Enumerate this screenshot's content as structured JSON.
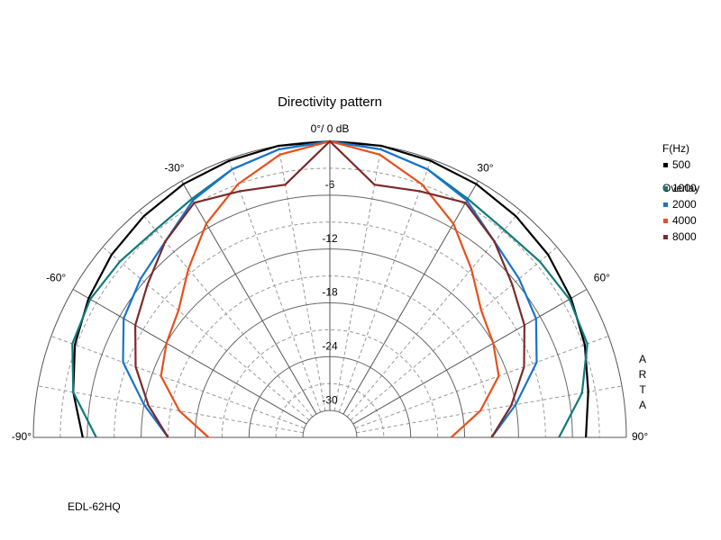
{
  "chart_data": {
    "type": "polar-half",
    "title": "Directivity pattern",
    "theta": [
      -90,
      -80,
      -70,
      -60,
      -50,
      -40,
      -30,
      -20,
      -10,
      0,
      10,
      20,
      30,
      40,
      50,
      60,
      70,
      80,
      90
    ],
    "rlim": [
      -33,
      0
    ],
    "rticks": [
      -30,
      -24,
      -18,
      -12,
      -6
    ],
    "r_minor": [
      -27,
      -21,
      -15,
      -9,
      -3
    ],
    "thetaticks": [
      {
        "value": -90,
        "label": "-90°"
      },
      {
        "value": -60,
        "label": "-60°"
      },
      {
        "value": -30,
        "label": "-30°"
      },
      {
        "value": 0,
        "label": "0°/ 0 dB"
      },
      {
        "value": 30,
        "label": "30°"
      },
      {
        "value": 60,
        "label": "60°"
      },
      {
        "value": 90,
        "label": "90°"
      }
    ],
    "theta_minor": [
      -80,
      -70,
      -50,
      -40,
      -20,
      -10,
      10,
      20,
      40,
      50,
      70,
      80
    ],
    "legend_title": "F(Hz)",
    "overlay_title": "Overlay",
    "side_label": "ARTA",
    "footer": "EDL-62HQ",
    "series": [
      {
        "name": "500",
        "color": "#000000",
        "values": [
          -5.5,
          -4,
          -2.8,
          -2,
          -1.3,
          -0.8,
          -0.4,
          -0.2,
          0,
          0,
          0,
          -0.2,
          -0.4,
          -0.8,
          -1.3,
          -2,
          -2.8,
          -3.8,
          -4.5
        ]
      },
      {
        "name": "1000",
        "color": "#0f7a7a",
        "values": [
          -7,
          -4,
          -2.5,
          -2.2,
          -2.5,
          -2.8,
          -2.3,
          -1.2,
          -0.4,
          0,
          -0.4,
          -1.2,
          -2.3,
          -2.8,
          -2.5,
          -2.2,
          -2.5,
          -4.5,
          -7.5
        ]
      },
      {
        "name": "2000",
        "color": "#1874cd",
        "values": [
          -15,
          -12,
          -8.5,
          -6.5,
          -5.5,
          -4.5,
          -2.5,
          -1.2,
          -0.4,
          0,
          -0.4,
          -1.2,
          -2.5,
          -4.5,
          -5.5,
          -6.5,
          -8.5,
          -12,
          -15
        ]
      },
      {
        "name": "4000",
        "color": "#e8501a",
        "values": [
          -19.5,
          -16,
          -13,
          -12,
          -11,
          -8.5,
          -5.5,
          -3,
          -1,
          0,
          -1,
          -3,
          -5.5,
          -8.5,
          -11,
          -12,
          -13,
          -16,
          -19.5
        ]
      },
      {
        "name": "8000",
        "color": "#7b2a2a",
        "values": [
          -15,
          -12.5,
          -10,
          -8,
          -6.5,
          -4.5,
          -2.8,
          -3.8,
          -4.4,
          0,
          -4.4,
          -3.8,
          -2.8,
          -4.5,
          -6.5,
          -8,
          -10,
          -12.5,
          -15
        ]
      }
    ]
  }
}
